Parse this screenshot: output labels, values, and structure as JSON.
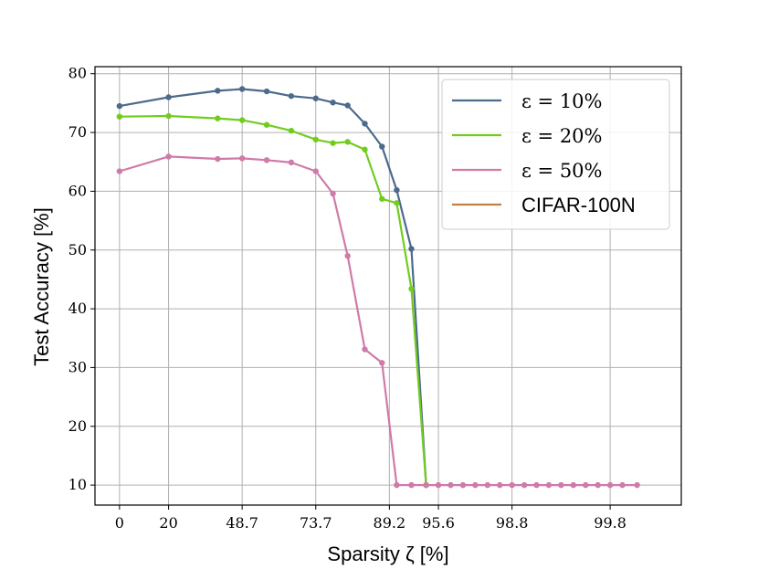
{
  "chart_data": {
    "type": "line",
    "xlabel": "Sparsity ζ [%]",
    "ylabel": "Test Accuracy [%]",
    "x_tick_labels": [
      "0",
      "20",
      "48.7",
      "73.7",
      "89.2",
      "95.6",
      "98.8",
      "99.8"
    ],
    "x_tick_index": [
      0,
      2,
      5,
      8,
      11,
      13,
      16,
      20
    ],
    "y_ticks": [
      10,
      20,
      30,
      40,
      50,
      60,
      70,
      80
    ],
    "ylim": [
      6.6,
      81.2
    ],
    "xlim": [
      -1,
      22.9
    ],
    "grid": true,
    "legend_position": "top-right",
    "x_index": [
      0,
      2,
      4,
      5,
      6,
      7,
      8,
      8.7,
      9.3,
      10,
      10.7,
      11.3,
      11.9,
      12.5,
      13,
      13.5,
      14,
      14.5,
      15,
      15.5,
      16,
      16.5,
      17,
      17.5,
      18,
      18.5,
      19,
      19.5,
      20,
      20.5,
      21.1
    ],
    "series": [
      {
        "name": "ε = 10%",
        "color": "#4c6a8c",
        "values": [
          74.5,
          76.0,
          77.1,
          77.4,
          77.0,
          76.2,
          75.8,
          75.1,
          74.6,
          71.5,
          67.6,
          60.2,
          50.2,
          10.0
        ]
      },
      {
        "name": "ε = 20%",
        "color": "#72cc1f",
        "values": [
          72.7,
          72.8,
          72.4,
          72.1,
          71.3,
          70.3,
          68.8,
          68.2,
          68.4,
          67.1,
          58.7,
          58.0,
          43.4,
          10.0
        ]
      },
      {
        "name": "ε = 50%",
        "color": "#cf7aa8",
        "values": [
          63.4,
          65.9,
          65.5,
          65.6,
          65.3,
          64.9,
          63.4,
          59.6,
          49.0,
          33.1,
          30.8,
          10.0,
          10.0,
          10.0,
          10.0,
          10.0,
          10.0,
          10.0,
          10.0,
          10.0,
          10.0,
          10.0,
          10.0,
          10.0,
          10.0,
          10.0,
          10.0,
          10.0,
          10.0,
          10.0,
          10.0
        ]
      },
      {
        "name": "CIFAR-100N",
        "color": "#c47f45",
        "values": []
      }
    ]
  }
}
